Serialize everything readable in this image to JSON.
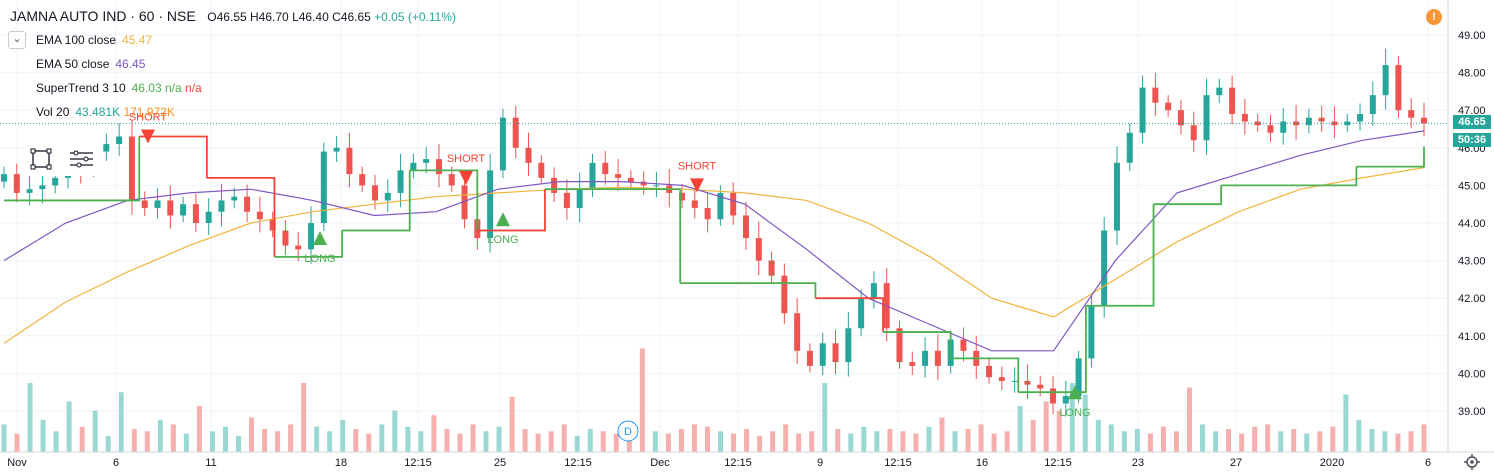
{
  "header": {
    "symbol": "JAMNA AUTO IND · 60 · NSE",
    "open": "O46.55",
    "high": "H46.70",
    "low": "L46.40",
    "close": "C46.65",
    "change": "+0.05 (+0.11%)"
  },
  "indicators": [
    {
      "name": "EMA 100 close",
      "v1": "45.47",
      "v1_color": "#f0b43c",
      "v2": "",
      "v3": ""
    },
    {
      "name": "EMA 50 close",
      "v1": "46.45",
      "v1_color": "#7e57c2",
      "v2": "",
      "v3": ""
    },
    {
      "name": "SuperTrend 3 10",
      "v1": "46.03",
      "v1_color": "#4caf50",
      "v2": "n/a",
      "v3": "n/a"
    },
    {
      "name": "Vol 20",
      "v1": "43.481K",
      "v1_color": "#26a69a",
      "v2": "171.972K",
      "v3": ""
    }
  ],
  "price_tags": {
    "last": "46.65",
    "countdown": "50:36"
  },
  "colors": {
    "up": "#26a69a",
    "down": "#ef5350",
    "ema100": "#f0b43c",
    "ema50": "#7e57c2",
    "st_up": "#4caf50",
    "st_down": "#f44336",
    "grid": "#f0f3fa",
    "last_price": "#26a69a"
  },
  "icons": {
    "alert": "alert-icon",
    "collapse": "chevron-down-icon",
    "drawing": "rectangle-select-icon",
    "menu": "menu-lines-icon",
    "settings": "gear-icon",
    "dividend": "dividend-marker-icon"
  },
  "dividend_label": "D",
  "chart_data": {
    "type": "candlestick",
    "title": "JAMNA AUTO IND · 60 · NSE",
    "y_axis": {
      "ticks": [
        "49.00",
        "48.00",
        "47.00",
        "46.00",
        "45.00",
        "44.00",
        "43.00",
        "42.00",
        "41.00",
        "40.00",
        "39.00"
      ],
      "range": [
        38.2,
        49.6
      ]
    },
    "x_axis": {
      "ticks": [
        "Nov",
        "6",
        "11",
        "18",
        "12:15",
        "25",
        "12:15",
        "Dec",
        "12:15",
        "9",
        "12:15",
        "16",
        "12:15",
        "23",
        "27",
        "2020",
        "6"
      ]
    },
    "close_path": [
      45.3,
      44.8,
      44.9,
      45.0,
      45.2,
      45.6,
      45.4,
      45.9,
      46.1,
      46.3,
      44.6,
      44.4,
      44.6,
      44.2,
      44.5,
      44.0,
      44.3,
      44.6,
      44.7,
      44.3,
      44.1,
      43.8,
      43.4,
      43.3,
      44.0,
      45.9,
      46.0,
      45.3,
      45.0,
      44.6,
      44.8,
      45.4,
      45.6,
      45.7,
      45.3,
      45.0,
      44.1,
      43.6,
      45.4,
      46.8,
      46.0,
      45.6,
      45.2,
      44.8,
      44.4,
      44.9,
      45.6,
      45.3,
      45.2,
      45.1,
      45.0,
      45.0,
      44.8,
      44.6,
      44.4,
      44.1,
      44.8,
      44.2,
      43.6,
      43.0,
      42.6,
      41.6,
      40.6,
      40.2,
      40.8,
      40.3,
      41.2,
      42.0,
      42.4,
      41.2,
      40.3,
      40.2,
      40.6,
      40.2,
      40.9,
      40.6,
      40.2,
      39.9,
      39.8,
      39.8,
      39.7,
      39.6,
      39.2,
      39.4,
      40.4,
      41.8,
      43.8,
      45.6,
      46.4,
      47.6,
      47.2,
      47.0,
      46.6,
      46.2,
      47.4,
      47.6,
      46.9,
      46.7,
      46.6,
      46.4,
      46.7,
      46.6,
      46.8,
      46.7,
      46.6,
      46.7,
      46.9,
      47.4,
      48.2,
      47.0,
      46.8,
      46.65
    ],
    "series": [
      {
        "name": "EMA 100 close",
        "values": [
          40.8,
          41.9,
          42.7,
          43.4,
          44.0,
          44.3,
          44.5,
          44.7,
          44.8,
          44.9,
          44.95,
          44.9,
          44.8,
          44.6,
          44.0,
          43.1,
          42.0,
          41.5,
          42.5,
          43.5,
          44.3,
          44.9,
          45.2,
          45.47
        ]
      },
      {
        "name": "EMA 50 close",
        "values": [
          43.0,
          44.0,
          44.6,
          44.8,
          44.9,
          44.6,
          44.2,
          44.3,
          44.9,
          45.1,
          45.1,
          45.0,
          44.5,
          43.3,
          42.0,
          41.3,
          40.6,
          40.6,
          43.0,
          44.8,
          45.3,
          45.8,
          46.2,
          46.45
        ]
      },
      {
        "name": "SuperTrend 3 10",
        "values": [
          44.6,
          44.6,
          46.3,
          45.2,
          43.1,
          43.8,
          45.4,
          43.8,
          44.9,
          44.9,
          42.4,
          42.4,
          42.0,
          41.1,
          40.4,
          39.5,
          41.8,
          44.5,
          45.0,
          45.0,
          45.5,
          46.03
        ]
      }
    ],
    "signals": [
      {
        "label": "SHORT",
        "type": "short"
      },
      {
        "label": "LONG",
        "type": "long"
      },
      {
        "label": "SHORT",
        "type": "short"
      },
      {
        "label": "LONG",
        "type": "long"
      },
      {
        "label": "SHORT",
        "type": "short"
      },
      {
        "label": "LONG",
        "type": "long"
      }
    ],
    "volume": [
      12,
      8,
      30,
      14,
      9,
      22,
      11,
      18,
      7,
      26,
      10,
      9,
      14,
      12,
      8,
      20,
      9,
      11,
      7,
      15,
      10,
      9,
      12,
      30,
      11,
      9,
      14,
      10,
      8,
      12,
      18,
      11,
      9,
      16,
      10,
      8,
      12,
      9,
      11,
      24,
      10,
      8,
      9,
      12,
      7,
      10,
      9,
      8,
      13,
      45,
      9,
      8,
      10,
      12,
      11,
      9,
      8,
      10,
      7,
      9,
      12,
      8,
      9,
      30,
      10,
      8,
      11,
      9,
      10,
      9,
      8,
      11,
      15,
      9,
      10,
      12,
      8,
      9,
      20,
      14,
      22,
      18,
      30,
      25,
      14,
      12,
      9,
      10,
      8,
      11,
      9,
      28,
      12,
      9,
      10,
      8,
      11,
      12,
      9,
      10,
      8,
      9,
      11,
      25,
      14,
      10,
      9,
      8,
      9,
      12
    ]
  }
}
